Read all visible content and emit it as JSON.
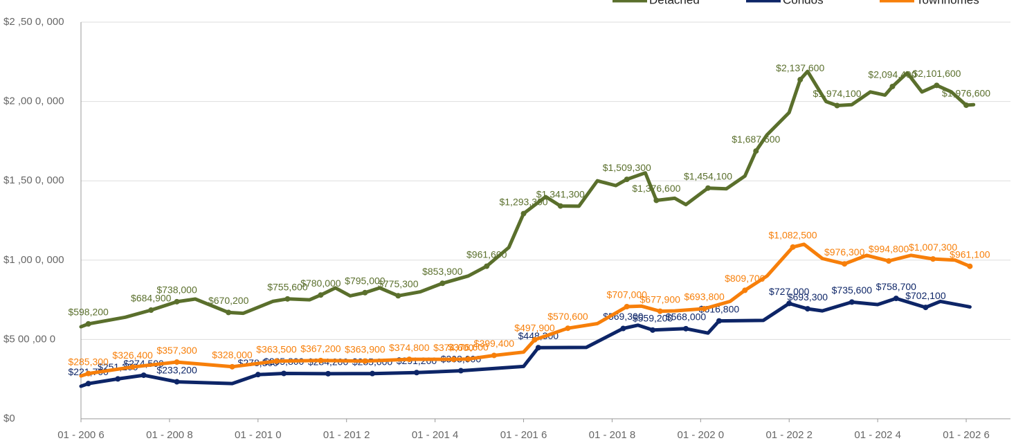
{
  "chart_data": {
    "type": "line",
    "xlim": [
      "2006-01",
      "2027-01"
    ],
    "xticks": [
      {
        "value": "2006-01",
        "label": "01 - 200 6"
      },
      {
        "value": "2008-01",
        "label": "01 - 200 8"
      },
      {
        "value": "2010-01",
        "label": "01 - 201 0"
      },
      {
        "value": "2012-01",
        "label": "01 - 201 2"
      },
      {
        "value": "2014-01",
        "label": "01 - 201 4"
      },
      {
        "value": "2016-01",
        "label": "01 - 201 6"
      },
      {
        "value": "2018-01",
        "label": "01 - 201 8"
      },
      {
        "value": "2020-01",
        "label": "01 - 202 0"
      },
      {
        "value": "2022-01",
        "label": "01 - 202 2"
      },
      {
        "value": "2024-01",
        "label": "01 - 202 4"
      },
      {
        "value": "2026-01",
        "label": "01 - 202 6"
      }
    ],
    "ylim": [
      0,
      2500000
    ],
    "yticks": [
      {
        "value": 0,
        "label": "$0"
      },
      {
        "value": 500000,
        "label": "$5 00 ,00 0"
      },
      {
        "value": 1000000,
        "label": "$1 ,00 0, 000"
      },
      {
        "value": 1500000,
        "label": "$1 ,50 0, 000"
      },
      {
        "value": 2000000,
        "label": "$2 ,00 0, 000"
      },
      {
        "value": 2500000,
        "label": "$2 ,50 0, 000"
      }
    ],
    "grid": true,
    "legend": "top-right",
    "series": [
      {
        "name": "Detached",
        "color": "#5a6f2c",
        "x": [
          "2006-01",
          "2006-03",
          "2007-01",
          "2007-08",
          "2008-03",
          "2008-08",
          "2009-05",
          "2009-09",
          "2010-05",
          "2010-09",
          "2011-03",
          "2011-06",
          "2011-10",
          "2012-02",
          "2012-06",
          "2012-10",
          "2013-03",
          "2013-09",
          "2014-03",
          "2014-10",
          "2015-03",
          "2015-09",
          "2016-01",
          "2016-07",
          "2016-11",
          "2017-04",
          "2017-09",
          "2018-02",
          "2018-05",
          "2018-10",
          "2019-01",
          "2019-06",
          "2019-09",
          "2020-03",
          "2020-08",
          "2021-01",
          "2021-04",
          "2021-07",
          "2022-01",
          "2022-04",
          "2022-06",
          "2022-11",
          "2023-02",
          "2023-06",
          "2023-11",
          "2024-03",
          "2024-05",
          "2024-09",
          "2025-01",
          "2025-05",
          "2025-09",
          "2026-01",
          "2026-03"
        ],
        "values": [
          580000,
          598200,
          640000,
          684900,
          738000,
          755000,
          670200,
          665000,
          740000,
          755600,
          750000,
          780000,
          825000,
          775000,
          795000,
          825000,
          775300,
          800000,
          853900,
          900000,
          961600,
          1080000,
          1293300,
          1400000,
          1341300,
          1340000,
          1500000,
          1470000,
          1509300,
          1550000,
          1376600,
          1390000,
          1350000,
          1454100,
          1450000,
          1530000,
          1687600,
          1790000,
          1930000,
          2137600,
          2190000,
          2000000,
          1974100,
          1980000,
          2060000,
          2040000,
          2094400,
          2180000,
          2060000,
          2101600,
          2060000,
          1976600,
          1980000
        ],
        "value_labels": [
          null,
          "$598,200",
          null,
          "$684,900",
          "$738,000",
          null,
          "$670,200",
          null,
          null,
          "$755,600",
          null,
          "$780,000",
          null,
          null,
          "$795,000",
          null,
          "$775,300",
          null,
          "$853,900",
          null,
          "$961,600",
          null,
          "$1,293,300",
          null,
          "$1,341,300",
          null,
          null,
          null,
          "$1,509,300",
          null,
          "$1,376,600",
          null,
          null,
          "$1,454,100",
          null,
          null,
          "$1,687,600",
          null,
          null,
          "$2,137,600",
          null,
          null,
          "$1,974,100",
          null,
          null,
          null,
          "$2,094,400",
          null,
          null,
          "$2,101,600",
          null,
          "$1,976,600",
          null
        ]
      },
      {
        "name": "Condos",
        "color": "#0d2567",
        "x": [
          "2006-01",
          "2006-03",
          "2006-11",
          "2007-06",
          "2008-03",
          "2009-06",
          "2010-01",
          "2010-08",
          "2011-08",
          "2012-08",
          "2013-08",
          "2014-08",
          "2016-01",
          "2016-05",
          "2017-06",
          "2018-04",
          "2018-08",
          "2018-12",
          "2019-09",
          "2020-03",
          "2020-06",
          "2021-06",
          "2022-01",
          "2022-06",
          "2022-10",
          "2023-06",
          "2024-01",
          "2024-06",
          "2025-02",
          "2025-06",
          "2026-02"
        ],
        "values": [
          205000,
          221700,
          251200,
          274500,
          233200,
          222000,
          278500,
          285800,
          284200,
          285000,
          291200,
          303000,
          330000,
          448300,
          450000,
          569300,
          590000,
          559200,
          568000,
          540000,
          616800,
          620000,
          727000,
          693300,
          680000,
          735600,
          720000,
          758700,
          702100,
          740000,
          705000
        ],
        "value_labels": [
          null,
          "$221,700",
          "$251,200",
          "$274,500",
          "$233,200",
          null,
          "$278,500",
          "$285,800",
          "$284,200",
          "$285,000",
          "$291,200",
          "$303,000",
          null,
          "$448,300",
          null,
          "$569,300",
          null,
          "$559,200",
          "$568,000",
          null,
          "$616,800",
          null,
          "$727,000",
          "$693,300",
          null,
          "$735,600",
          null,
          "$758,700",
          "$702,100",
          null,
          null
        ]
      },
      {
        "name": "Townhomes",
        "color": "#f77f0a",
        "x": [
          "2006-01",
          "2006-03",
          "2007-03",
          "2008-03",
          "2009-06",
          "2010-06",
          "2011-06",
          "2012-06",
          "2013-06",
          "2014-06",
          "2014-10",
          "2015-05",
          "2016-01",
          "2016-04",
          "2017-01",
          "2017-09",
          "2018-05",
          "2018-09",
          "2019-02",
          "2019-06",
          "2020-02",
          "2020-09",
          "2021-01",
          "2021-07",
          "2022-02",
          "2022-05",
          "2022-10",
          "2023-04",
          "2023-10",
          "2024-04",
          "2024-10",
          "2025-04",
          "2025-10",
          "2026-02"
        ],
        "values": [
          270000,
          285300,
          326400,
          357300,
          328000,
          363500,
          367200,
          363900,
          374800,
          374600,
          376600,
          399400,
          420000,
          497900,
          570600,
          600000,
          707000,
          710000,
          677900,
          680000,
          693800,
          740000,
          809700,
          900000,
          1082500,
          1100000,
          1010000,
          976300,
          1030000,
          994800,
          1030000,
          1007300,
          1000000,
          961100
        ],
        "value_labels": [
          null,
          "$285,300",
          "$326,400",
          "$357,300",
          "$328,000",
          "$363,500",
          "$367,200",
          "$363,900",
          "$374,800",
          "$374,600",
          "$376,600",
          "$399,400",
          null,
          "$497,900",
          "$570,600",
          null,
          "$707,000",
          null,
          "$677,900",
          null,
          "$693,800",
          null,
          "$809,700",
          null,
          "$1,082,500",
          null,
          null,
          "$976,300",
          null,
          "$994,800",
          null,
          "$1,007,300",
          null,
          "$961,100"
        ]
      }
    ]
  }
}
